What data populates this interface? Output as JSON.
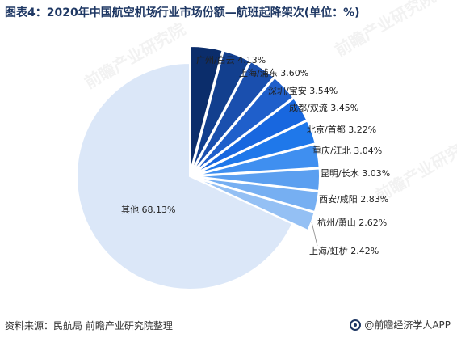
{
  "title": "图表4：2020年中国航空机场行业市场份额—航班起降架次(单位：%)",
  "source": "资料来源：民航局 前瞻产业研究院整理",
  "brand": "@前瞻经济学人APP",
  "watermark": "前瞻产业研究院",
  "chart_data": {
    "type": "pie",
    "title": "图表4：2020年中国航空机场行业市场份额—航班起降架次(单位：%)",
    "unit": "%",
    "start_angle_deg": 0,
    "direction": "clockwise",
    "exploded": true,
    "slices": [
      {
        "label": "广州/白云",
        "value": 4.13,
        "display": "广州/白云 4.13%",
        "color": "#0b2d6b"
      },
      {
        "label": "上海/浦东",
        "value": 3.6,
        "display": "上海/浦东 3.60%",
        "color": "#123f8e"
      },
      {
        "label": "深圳/宝安",
        "value": 3.54,
        "display": "深圳/宝安 3.54%",
        "color": "#1a4fae"
      },
      {
        "label": "成都/双流",
        "value": 3.45,
        "display": "成都/双流 3.45%",
        "color": "#1f5fcb"
      },
      {
        "label": "北京/首都",
        "value": 3.22,
        "display": "北京/首都 3.22%",
        "color": "#1867df"
      },
      {
        "label": "重庆/江北",
        "value": 3.04,
        "display": "重庆/江北 3.04%",
        "color": "#1f78ea"
      },
      {
        "label": "昆明/长水",
        "value": 3.03,
        "display": "昆明/长水 3.03%",
        "color": "#3f8ff0"
      },
      {
        "label": "西安/咸阳",
        "value": 2.83,
        "display": "西安/咸阳 2.83%",
        "color": "#5b9ff0"
      },
      {
        "label": "杭州/萧山",
        "value": 2.62,
        "display": "杭州/萧山 2.62%",
        "color": "#76aff2"
      },
      {
        "label": "上海/虹桥",
        "value": 2.42,
        "display": "上海/虹桥 2.42%",
        "color": "#94c0f4"
      },
      {
        "label": "其他",
        "value": 68.13,
        "display": "其他 68.13%",
        "color": "#dbe7f8"
      }
    ]
  }
}
